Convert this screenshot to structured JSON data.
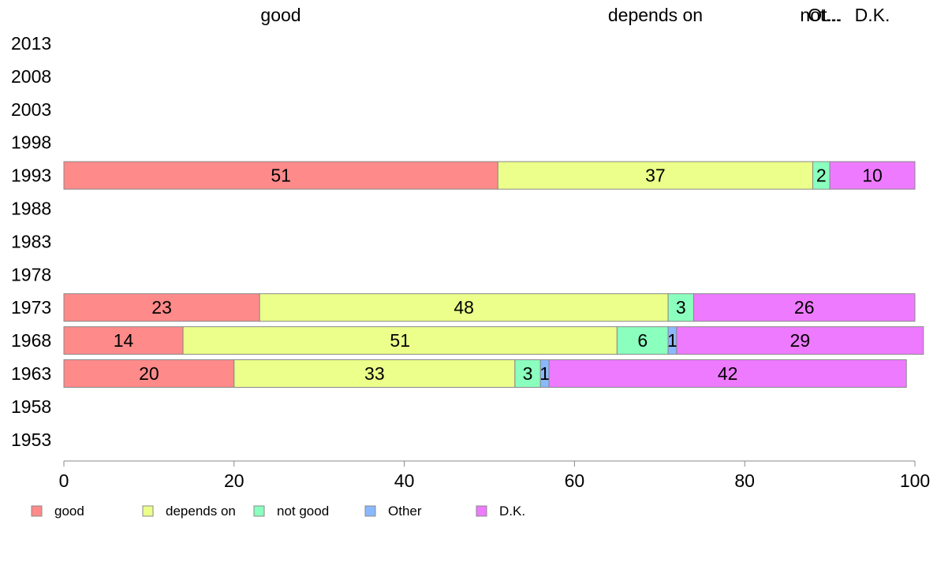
{
  "chart_data": {
    "type": "bar",
    "orientation": "horizontal",
    "stacked": true,
    "categories": [
      "2013",
      "2008",
      "2003",
      "1998",
      "1993",
      "1988",
      "1983",
      "1978",
      "1973",
      "1968",
      "1963",
      "1958",
      "1953"
    ],
    "series": [
      {
        "name": "good",
        "color": "#ff8a8a",
        "values": [
          null,
          null,
          null,
          null,
          51,
          null,
          null,
          null,
          23,
          14,
          20,
          null,
          null
        ]
      },
      {
        "name": "depends on",
        "color": "#ecff8a",
        "values": [
          null,
          null,
          null,
          null,
          37,
          null,
          null,
          null,
          48,
          51,
          33,
          null,
          null
        ]
      },
      {
        "name": "not good",
        "color": "#8affbe",
        "values": [
          null,
          null,
          null,
          null,
          2,
          null,
          null,
          null,
          3,
          6,
          3,
          null,
          null
        ]
      },
      {
        "name": "Other",
        "color": "#8ab8ff",
        "values": [
          null,
          null,
          null,
          null,
          0,
          null,
          null,
          null,
          0,
          1,
          1,
          null,
          null
        ]
      },
      {
        "name": "D.K.",
        "color": "#ee7aff",
        "values": [
          null,
          null,
          null,
          null,
          10,
          null,
          null,
          null,
          26,
          29,
          42,
          null,
          null
        ]
      }
    ],
    "top_labels": [
      "good",
      "depends on",
      "not...",
      "Ot...",
      "D.K."
    ],
    "xlim": [
      0,
      100
    ],
    "xticks": [
      0,
      20,
      40,
      60,
      80,
      100
    ],
    "grid": false,
    "legend_position": "bottom-left"
  }
}
